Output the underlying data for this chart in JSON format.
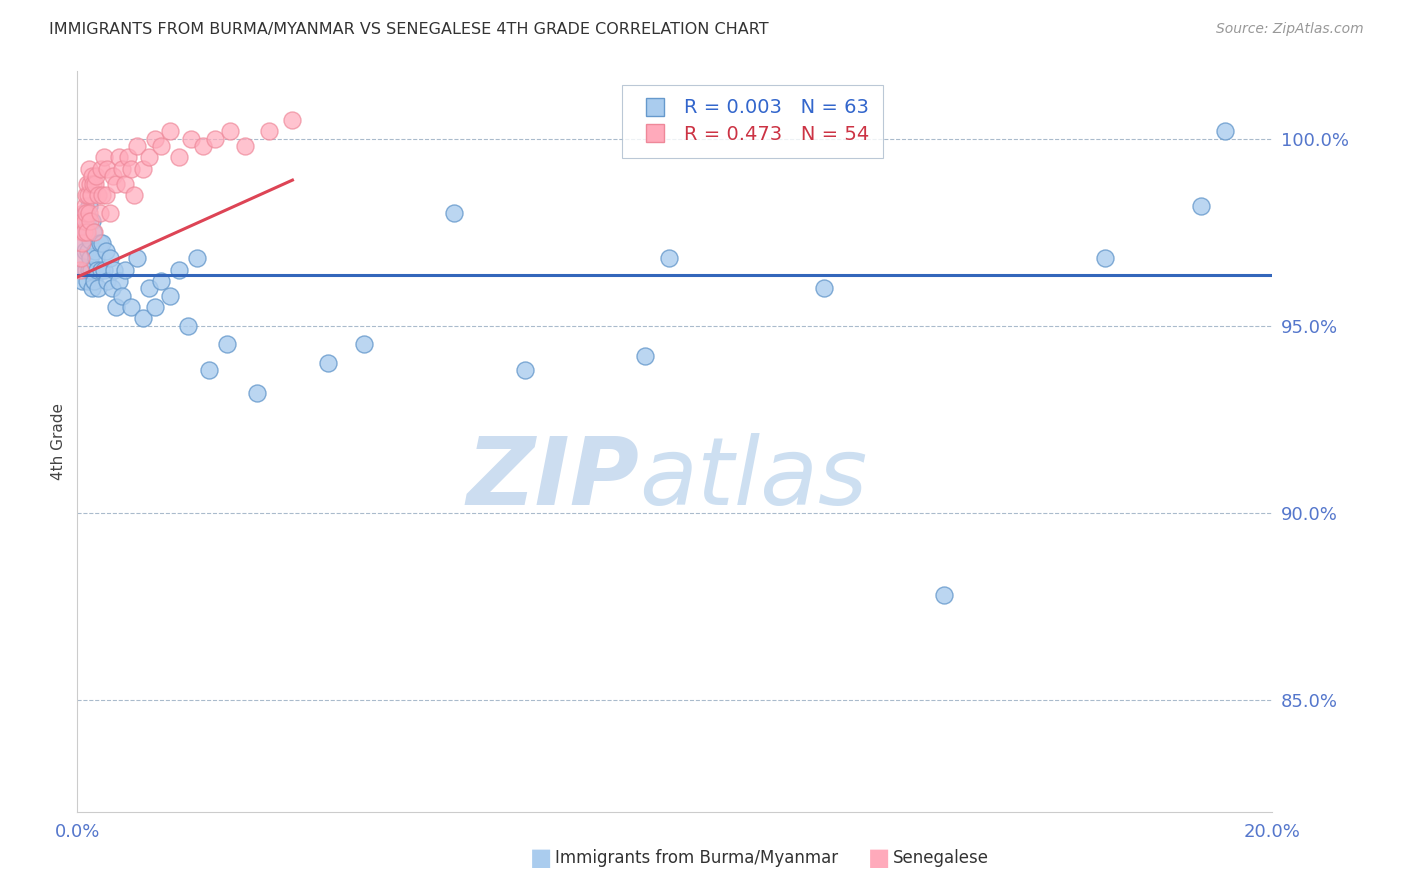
{
  "title": "IMMIGRANTS FROM BURMA/MYANMAR VS SENEGALESE 4TH GRADE CORRELATION CHART",
  "source": "Source: ZipAtlas.com",
  "ylabel": "4th Grade",
  "ylabel_right_ticks": [
    100.0,
    95.0,
    90.0,
    85.0
  ],
  "ylabel_right_labels": [
    "100.0%",
    "95.0%",
    "90.0%",
    "85.0%"
  ],
  "xlabel_ticks": [
    0.0,
    20.0
  ],
  "xlabel_labels": [
    "0.0%",
    "20.0%"
  ],
  "x_min": 0.0,
  "x_max": 20.0,
  "y_min": 82.0,
  "y_max": 101.8,
  "blue_r": 0.003,
  "blue_n": 63,
  "pink_r": 0.473,
  "pink_n": 54,
  "blue_color": "#AACCEE",
  "pink_color": "#FFAABB",
  "blue_edge_color": "#6699CC",
  "pink_edge_color": "#EE8899",
  "blue_line_color": "#3366BB",
  "pink_line_color": "#DD4455",
  "grid_color": "#AABBCC",
  "tick_color": "#5577CC",
  "title_color": "#333333",
  "source_color": "#999999",
  "watermark_text_color": "#CCDDF0",
  "legend_text_blue": "#3366CC",
  "legend_text_pink": "#CC3344",
  "bottom_label1": "Immigrants from Burma/Myanmar",
  "bottom_label2": "Senegalese",
  "blue_trend_y_intercept": 96.35,
  "blue_trend_slope": 0.0,
  "pink_trend_y_intercept": 96.3,
  "pink_trend_slope": 0.72,
  "blue_x": [
    0.05,
    0.07,
    0.08,
    0.09,
    0.1,
    0.11,
    0.12,
    0.13,
    0.14,
    0.15,
    0.16,
    0.17,
    0.18,
    0.19,
    0.2,
    0.21,
    0.22,
    0.23,
    0.24,
    0.25,
    0.27,
    0.28,
    0.3,
    0.32,
    0.33,
    0.35,
    0.38,
    0.4,
    0.42,
    0.45,
    0.48,
    0.5,
    0.55,
    0.58,
    0.62,
    0.65,
    0.7,
    0.75,
    0.8,
    0.9,
    1.0,
    1.1,
    1.2,
    1.3,
    1.4,
    1.55,
    1.7,
    1.85,
    2.0,
    2.2,
    2.5,
    3.0,
    4.2,
    7.5,
    9.5,
    14.5,
    17.2,
    18.8,
    4.8,
    6.3,
    9.9,
    12.5,
    19.2
  ],
  "blue_y": [
    96.8,
    97.5,
    96.2,
    97.8,
    97.2,
    96.5,
    97.0,
    98.0,
    96.5,
    97.5,
    96.2,
    97.8,
    97.0,
    96.5,
    98.2,
    96.8,
    97.3,
    96.5,
    97.8,
    96.0,
    97.5,
    96.2,
    97.0,
    96.8,
    96.5,
    96.0,
    97.2,
    96.5,
    97.2,
    96.5,
    97.0,
    96.2,
    96.8,
    96.0,
    96.5,
    95.5,
    96.2,
    95.8,
    96.5,
    95.5,
    96.8,
    95.2,
    96.0,
    95.5,
    96.2,
    95.8,
    96.5,
    95.0,
    96.8,
    93.8,
    94.5,
    93.2,
    94.0,
    93.8,
    94.2,
    87.8,
    96.8,
    98.2,
    94.5,
    98.0,
    96.8,
    96.0,
    100.2
  ],
  "pink_x": [
    0.04,
    0.06,
    0.07,
    0.08,
    0.09,
    0.1,
    0.11,
    0.12,
    0.13,
    0.14,
    0.15,
    0.16,
    0.17,
    0.18,
    0.19,
    0.2,
    0.21,
    0.22,
    0.23,
    0.25,
    0.27,
    0.28,
    0.3,
    0.32,
    0.35,
    0.38,
    0.4,
    0.42,
    0.45,
    0.48,
    0.5,
    0.55,
    0.6,
    0.65,
    0.7,
    0.75,
    0.8,
    0.85,
    0.9,
    0.95,
    1.0,
    1.1,
    1.2,
    1.3,
    1.4,
    1.55,
    1.7,
    1.9,
    2.1,
    2.3,
    2.55,
    2.8,
    3.2,
    3.6
  ],
  "pink_y": [
    96.5,
    96.8,
    97.5,
    97.2,
    98.0,
    97.8,
    97.5,
    98.2,
    97.8,
    98.5,
    98.0,
    98.8,
    97.5,
    98.5,
    98.0,
    99.2,
    97.8,
    98.8,
    98.5,
    99.0,
    98.8,
    97.5,
    98.8,
    99.0,
    98.5,
    98.0,
    99.2,
    98.5,
    99.5,
    98.5,
    99.2,
    98.0,
    99.0,
    98.8,
    99.5,
    99.2,
    98.8,
    99.5,
    99.2,
    98.5,
    99.8,
    99.2,
    99.5,
    100.0,
    99.8,
    100.2,
    99.5,
    100.0,
    99.8,
    100.0,
    100.2,
    99.8,
    100.2,
    100.5
  ]
}
